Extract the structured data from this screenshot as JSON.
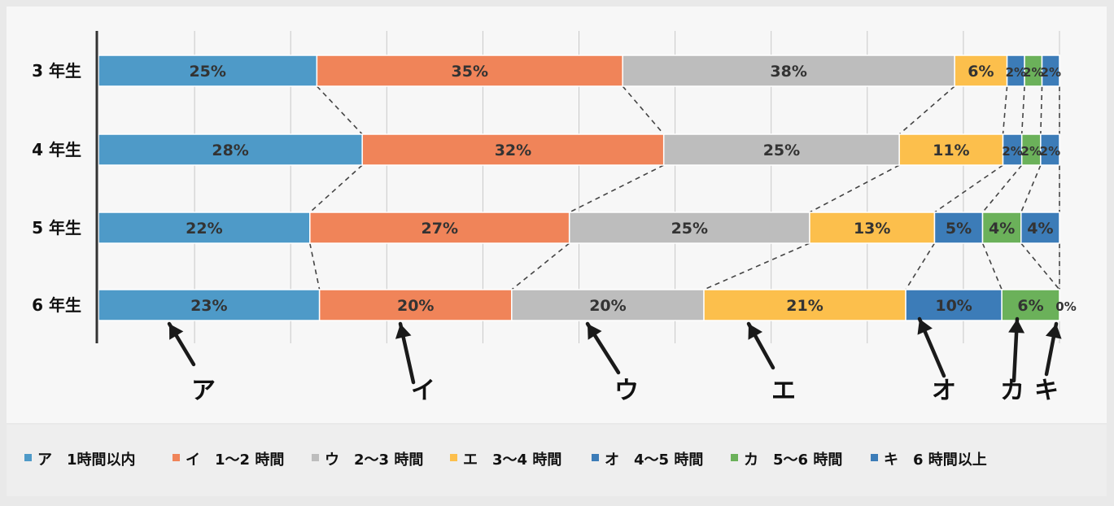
{
  "chart_data": {
    "type": "bar",
    "orientation": "horizontal",
    "stacked": "100%",
    "categories": [
      "3 年生",
      "4 年生",
      "5 年生",
      "6 年生"
    ],
    "series": [
      {
        "name": "ア　1時間以内",
        "color": "#4e9ac8",
        "values": [
          25,
          28,
          22,
          23
        ],
        "labels": [
          "25%",
          "28%",
          "22%",
          "23%"
        ]
      },
      {
        "name": "イ　1～2 時間",
        "color": "#f08459",
        "values": [
          35,
          32,
          27,
          20
        ],
        "labels": [
          "35%",
          "32%",
          "27%",
          "20%"
        ]
      },
      {
        "name": "ウ　2～3 時間",
        "color": "#bdbdbd",
        "values": [
          38,
          25,
          25,
          20
        ],
        "labels": [
          "38%",
          "25%",
          "25%",
          "20%"
        ]
      },
      {
        "name": "エ　3～4 時間",
        "color": "#fcbf4c",
        "values": [
          6,
          11,
          13,
          21
        ],
        "labels": [
          "6%",
          "11%",
          "13%",
          "21%"
        ]
      },
      {
        "name": "オ　4～5 時間",
        "color": "#3c7cb8",
        "values": [
          2,
          2,
          5,
          10
        ],
        "labels": [
          "2%",
          "2%",
          "5%",
          "10%"
        ]
      },
      {
        "name": "カ　5～6 時間",
        "color": "#6bb15a",
        "values": [
          2,
          2,
          4,
          6
        ],
        "labels": [
          "2%",
          "2%",
          "4%",
          "6%"
        ]
      },
      {
        "name": "キ　6 時間以上",
        "color": "#3c7cb8",
        "values": [
          2,
          2,
          4,
          0
        ],
        "labels": [
          "2%",
          "2%",
          "4%",
          "0%"
        ]
      }
    ],
    "arrow_labels": [
      "ア",
      "イ",
      "ウ",
      "エ",
      "オ",
      "カ",
      "キ"
    ],
    "legend_position": "bottom",
    "grid": true
  }
}
